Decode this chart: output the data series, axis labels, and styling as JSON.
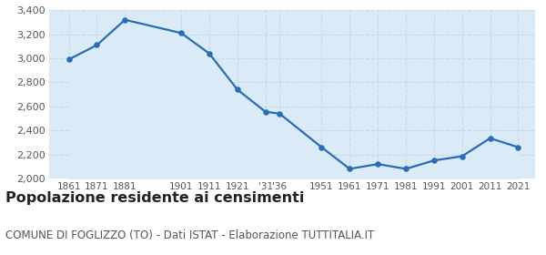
{
  "years": [
    1861,
    1871,
    1881,
    1901,
    1911,
    1921,
    1931,
    1936,
    1951,
    1961,
    1971,
    1981,
    1991,
    2001,
    2011,
    2021
  ],
  "x_labels": [
    "1861",
    "1871",
    "1881",
    "1901",
    "1911",
    "1921",
    "'31",
    "'36",
    "1951",
    "1961",
    "1971",
    "1981",
    "1991",
    "2001",
    "2011",
    "2021"
  ],
  "population": [
    2990,
    3110,
    3320,
    3210,
    3040,
    2740,
    2555,
    2540,
    2260,
    2080,
    2120,
    2080,
    2150,
    2185,
    2335,
    2260
  ],
  "line_color": "#2a6db5",
  "fill_color": "#daeaf7",
  "marker_color": "#2a6db5",
  "background_color": "#ffffff",
  "grid_color": "#c8d8e8",
  "ylim": [
    2000,
    3400
  ],
  "yticks": [
    2000,
    2200,
    2400,
    2600,
    2800,
    3000,
    3200,
    3400
  ],
  "title": "Popolazione residente ai censimenti",
  "subtitle": "COMUNE DI FOGLIZZO (TO) - Dati ISTAT - Elaborazione TUTTITALIA.IT",
  "title_fontsize": 11.5,
  "subtitle_fontsize": 8.5
}
